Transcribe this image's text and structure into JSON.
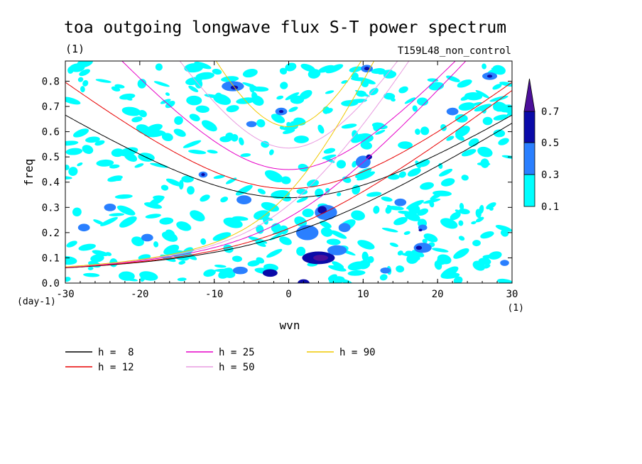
{
  "chart_data": {
    "type": "heatmap",
    "title": "toa outgoing longwave flux S-T power spectrum",
    "subtitle_left": "(1)",
    "subtitle_right": "T159L48_non_control",
    "xlabel": "wvn",
    "ylabel": "freq",
    "x_unit": "(1)",
    "y_unit": "(day-1)",
    "xlim": [
      -30,
      30
    ],
    "ylim": [
      0,
      0.88
    ],
    "x_ticks": [
      -30,
      -20,
      -10,
      0,
      10,
      20,
      30
    ],
    "x_tick_labels": [
      "-30",
      "-20",
      "-10",
      "0",
      "10",
      "20",
      "30"
    ],
    "y_ticks": [
      0,
      0.1,
      0.2,
      0.3,
      0.4,
      0.5,
      0.6,
      0.7,
      0.8
    ],
    "y_tick_labels": [
      "0.0",
      "0.1",
      "0.2",
      "0.3",
      "0.4",
      "0.5",
      "0.6",
      "0.7",
      "0.8"
    ],
    "colorbar": {
      "levels": [
        0.1,
        0.3,
        0.5,
        0.7
      ],
      "level_labels": [
        "0.1",
        "0.3",
        "0.5",
        "0.7"
      ],
      "colors": [
        "#00ffff",
        "#2a7fff",
        "#0a0aa8",
        "#4b0f9a"
      ]
    },
    "dispersion_curves": [
      {
        "label": "h =  8",
        "h": 8,
        "color": "#000000"
      },
      {
        "label": "h = 12",
        "h": 12,
        "color": "#e80000"
      },
      {
        "label": "h = 25",
        "h": 25,
        "color": "#e600c8"
      },
      {
        "label": "h = 50",
        "h": 50,
        "color": "#e89be0"
      },
      {
        "label": "h = 90",
        "h": 90,
        "color": "#f0c800"
      }
    ],
    "spectrum_patches": [
      {
        "x": 4,
        "y": 0.1,
        "rx": 2.2,
        "ry": 0.025,
        "level": 2
      },
      {
        "x": 4.3,
        "y": 0.1,
        "rx": 1.0,
        "ry": 0.012,
        "level": 3
      },
      {
        "x": 5,
        "y": 0.28,
        "rx": 1.5,
        "ry": 0.03,
        "level": 1
      },
      {
        "x": 4.5,
        "y": 0.29,
        "rx": 0.6,
        "ry": 0.015,
        "level": 2
      },
      {
        "x": 2.5,
        "y": 0.2,
        "rx": 1.5,
        "ry": 0.03,
        "level": 1
      },
      {
        "x": 6.5,
        "y": 0.13,
        "rx": 1.3,
        "ry": 0.02,
        "level": 1
      },
      {
        "x": -2.5,
        "y": 0.04,
        "rx": 1.0,
        "ry": 0.015,
        "level": 2
      },
      {
        "x": -6.5,
        "y": 0.05,
        "rx": 1.0,
        "ry": 0.015,
        "level": 1
      },
      {
        "x": 2,
        "y": 0.0,
        "rx": 0.8,
        "ry": 0.015,
        "level": 2
      },
      {
        "x": 7.5,
        "y": 0.22,
        "rx": 0.8,
        "ry": 0.018,
        "level": 1
      },
      {
        "x": 10,
        "y": 0.48,
        "rx": 1.0,
        "ry": 0.025,
        "level": 1
      },
      {
        "x": 10.8,
        "y": 0.5,
        "rx": 0.4,
        "ry": 0.01,
        "level": 2
      },
      {
        "x": 10.5,
        "y": 0.85,
        "rx": 0.8,
        "ry": 0.015,
        "level": 1
      },
      {
        "x": 10.5,
        "y": 0.85,
        "rx": 0.35,
        "ry": 0.007,
        "level": 2
      },
      {
        "x": -11.5,
        "y": 0.43,
        "rx": 0.6,
        "ry": 0.012,
        "level": 1
      },
      {
        "x": -11.5,
        "y": 0.43,
        "rx": 0.25,
        "ry": 0.006,
        "level": 2
      },
      {
        "x": -7.5,
        "y": 0.78,
        "rx": 1.5,
        "ry": 0.02,
        "level": 1
      },
      {
        "x": -7.3,
        "y": 0.775,
        "rx": 0.5,
        "ry": 0.008,
        "level": 2
      },
      {
        "x": -6,
        "y": 0.33,
        "rx": 1.0,
        "ry": 0.018,
        "level": 1
      },
      {
        "x": 15,
        "y": 0.32,
        "rx": 0.8,
        "ry": 0.015,
        "level": 1
      },
      {
        "x": 18,
        "y": 0.14,
        "rx": 1.2,
        "ry": 0.02,
        "level": 1
      },
      {
        "x": 17.5,
        "y": 0.14,
        "rx": 0.4,
        "ry": 0.008,
        "level": 2
      },
      {
        "x": 27,
        "y": 0.82,
        "rx": 1.0,
        "ry": 0.015,
        "level": 1
      },
      {
        "x": 27,
        "y": 0.82,
        "rx": 0.35,
        "ry": 0.006,
        "level": 2
      },
      {
        "x": -1,
        "y": 0.68,
        "rx": 0.8,
        "ry": 0.015,
        "level": 1
      },
      {
        "x": -1,
        "y": 0.68,
        "rx": 0.3,
        "ry": 0.006,
        "level": 2
      },
      {
        "x": -24,
        "y": 0.3,
        "rx": 0.8,
        "ry": 0.015,
        "level": 1
      },
      {
        "x": -27.5,
        "y": 0.22,
        "rx": 0.8,
        "ry": 0.015,
        "level": 1
      },
      {
        "x": 18,
        "y": 0.22,
        "rx": 0.6,
        "ry": 0.012,
        "level": 1
      },
      {
        "x": 17.7,
        "y": 0.21,
        "rx": 0.25,
        "ry": 0.005,
        "level": 2
      },
      {
        "x": -19,
        "y": 0.18,
        "rx": 0.8,
        "ry": 0.015,
        "level": 1
      },
      {
        "x": -5,
        "y": 0.63,
        "rx": 0.7,
        "ry": 0.012,
        "level": 1
      },
      {
        "x": 13,
        "y": 0.05,
        "rx": 0.7,
        "ry": 0.012,
        "level": 1
      },
      {
        "x": 22,
        "y": 0.68,
        "rx": 0.8,
        "ry": 0.015,
        "level": 1
      },
      {
        "x": 29,
        "y": 0.08,
        "rx": 0.6,
        "ry": 0.012,
        "level": 1
      }
    ]
  }
}
